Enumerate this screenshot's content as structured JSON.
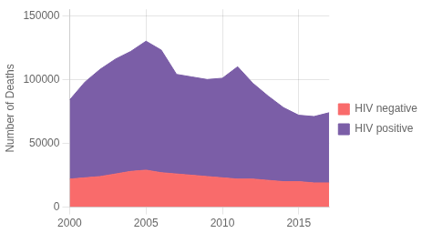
{
  "chart_data": {
    "type": "area",
    "ylabel": "Number of Deaths",
    "x": [
      2000,
      2001,
      2002,
      2003,
      2004,
      2005,
      2006,
      2007,
      2008,
      2009,
      2010,
      2011,
      2012,
      2013,
      2014,
      2015,
      2016,
      2017
    ],
    "series": [
      {
        "name": "HIV negative",
        "color": "#F96B6B",
        "values": [
          22000,
          23000,
          24000,
          26000,
          28000,
          29000,
          27000,
          26000,
          25000,
          24000,
          23000,
          22000,
          22000,
          21000,
          20000,
          20000,
          19000,
          19000
        ]
      },
      {
        "name": "HIV positive",
        "color": "#7B5EA7",
        "values": [
          62000,
          75000,
          84000,
          90000,
          94000,
          101000,
          96000,
          78000,
          77000,
          76000,
          78000,
          88000,
          75000,
          66000,
          58000,
          52000,
          52000,
          55000
        ]
      }
    ],
    "xlim": [
      2000,
      2017
    ],
    "xticks": [
      2000,
      2005,
      2010,
      2015
    ],
    "ylim": [
      0,
      155000
    ],
    "yticks": [
      0,
      50000,
      100000,
      150000
    ],
    "stacked": true,
    "grid": true,
    "legend": "right"
  }
}
